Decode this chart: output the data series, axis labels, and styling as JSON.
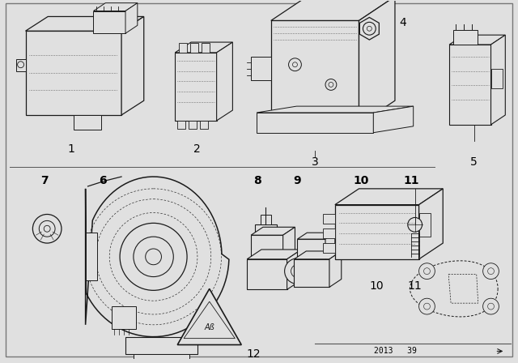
{
  "bg_color": "#e0e0e0",
  "line_color": "#1a1a1a",
  "text_color": "#000000",
  "fig_width": 6.4,
  "fig_height": 4.48,
  "dpi": 100,
  "footer_text": "2013   39",
  "border_color": "#888888"
}
